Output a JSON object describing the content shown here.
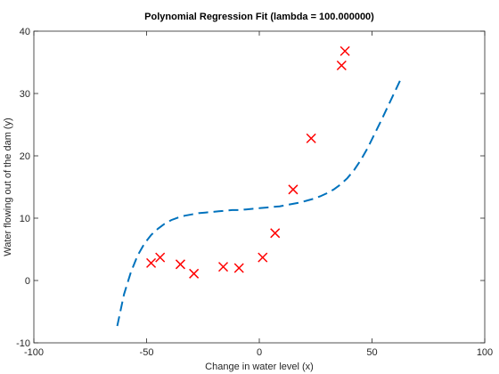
{
  "chart_data": {
    "type": "scatter",
    "title": "Polynomial Regression Fit (lambda = 100.000000)",
    "xlabel": "Change in water level (x)",
    "ylabel": "Water flowing out of the dam (y)",
    "xlim": [
      -100,
      100
    ],
    "ylim": [
      -10,
      40
    ],
    "xticks": [
      -100,
      -50,
      0,
      50,
      100
    ],
    "yticks": [
      -10,
      0,
      10,
      20,
      30,
      40
    ],
    "grid": false,
    "legend": "none",
    "series": [
      {
        "type": "scatter",
        "marker": "x",
        "color": "#ff0000",
        "x": [
          -48,
          -44,
          -35,
          -29,
          -16,
          -9,
          1.5,
          7,
          15,
          23,
          36.5,
          38
        ],
        "y": [
          2.8,
          3.7,
          2.6,
          1.1,
          2.2,
          2.0,
          3.7,
          7.6,
          14.6,
          22.8,
          34.5,
          36.8
        ]
      },
      {
        "type": "line",
        "style": "dashed",
        "color": "#0072bd",
        "x": [
          -63,
          -60,
          -57,
          -54,
          -51,
          -48,
          -45,
          -42,
          -39,
          -36,
          -33,
          -30,
          -27,
          -24,
          -21,
          -18,
          -15,
          -12,
          -9,
          -6,
          -3,
          0,
          3,
          6,
          9,
          12,
          15,
          18,
          21,
          24,
          27,
          30,
          33,
          36,
          39,
          42,
          45,
          48,
          51,
          54,
          57,
          60,
          63
        ],
        "y": [
          -7.3,
          -2.2,
          1.3,
          4.0,
          5.9,
          7.3,
          8.3,
          9.1,
          9.7,
          10.1,
          10.4,
          10.6,
          10.8,
          10.9,
          11.0,
          11.1,
          11.2,
          11.3,
          11.3,
          11.4,
          11.5,
          11.6,
          11.7,
          11.8,
          11.9,
          12.1,
          12.3,
          12.5,
          12.8,
          13.1,
          13.5,
          14.0,
          14.6,
          15.4,
          16.4,
          17.7,
          19.3,
          21.2,
          23.4,
          25.6,
          27.9,
          30.2,
          32.5
        ]
      }
    ]
  }
}
